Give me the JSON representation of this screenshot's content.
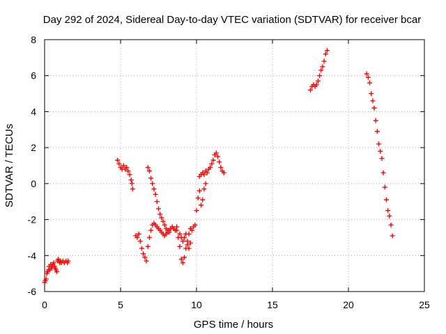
{
  "chart_data": {
    "type": "scatter",
    "title": "Day 292 of 2024, Sidereal Day-to-day VTEC variation (SDTVAR) for receiver bcar",
    "xlabel": "GPS time / hours",
    "ylabel": "SDTVAR / TECUs",
    "xlim": [
      0,
      25
    ],
    "ylim": [
      -6,
      8
    ],
    "xticks": [
      "0",
      "5",
      "10",
      "15",
      "20",
      "25"
    ],
    "yticks": [
      "-6",
      "-4",
      "-2",
      "0",
      "2",
      "4",
      "6",
      "8"
    ],
    "grid": true,
    "marker": "plus",
    "series": [
      {
        "name": "SDTVAR",
        "color": "#ff0000",
        "segments": [
          {
            "x": [
              0.0,
              0.05,
              0.1,
              0.15,
              0.2,
              0.25,
              0.3,
              0.35,
              0.4,
              0.45,
              0.5,
              0.55,
              0.6,
              0.65,
              0.7,
              0.75,
              0.8,
              0.85,
              0.9,
              0.95,
              1.0,
              1.05,
              1.1,
              1.2,
              1.3,
              1.4,
              1.5,
              1.55
            ],
            "y": [
              -5.5,
              -5.4,
              -5.3,
              -5.0,
              -4.9,
              -4.8,
              -4.6,
              -4.8,
              -4.5,
              -4.7,
              -4.6,
              -4.5,
              -4.4,
              -4.6,
              -4.7,
              -4.8,
              -4.9,
              -4.3,
              -4.2,
              -4.3,
              -4.4,
              -4.3,
              -4.4,
              -4.3,
              -4.4,
              -4.3,
              -4.4,
              -4.3
            ]
          },
          {
            "x": [
              4.8,
              4.9,
              5.0,
              5.1,
              5.2,
              5.3,
              5.4,
              5.5,
              5.6,
              5.7,
              5.75,
              5.8
            ],
            "y": [
              1.3,
              1.1,
              0.9,
              0.8,
              1.0,
              0.8,
              0.9,
              0.7,
              0.5,
              0.2,
              0.0,
              -0.3
            ]
          },
          {
            "x": [
              6.0,
              6.1,
              6.2,
              6.3,
              6.4,
              6.5,
              6.6,
              6.7,
              6.8,
              6.9,
              7.0,
              7.1,
              7.2,
              7.3,
              7.4,
              7.5,
              7.6,
              7.7,
              7.8,
              7.9,
              8.0,
              8.1,
              8.2,
              8.3,
              8.4,
              8.5,
              8.6,
              8.7
            ],
            "y": [
              -2.9,
              -3.0,
              -2.8,
              -3.2,
              -3.6,
              -3.9,
              -4.1,
              -4.3,
              -3.5,
              -3.0,
              -2.6,
              -2.3,
              -2.2,
              -2.3,
              -2.4,
              -2.5,
              -2.6,
              -2.7,
              -2.8,
              -2.9,
              -2.8,
              -2.7,
              -2.6,
              -2.5,
              -2.4,
              -2.5,
              -2.6,
              -2.4
            ]
          },
          {
            "x": [
              6.8,
              6.9,
              7.0,
              7.1,
              7.2,
              7.3,
              7.4,
              7.5,
              7.6,
              7.7,
              7.8,
              7.9,
              8.0,
              8.1,
              8.2
            ],
            "y": [
              0.9,
              0.7,
              0.3,
              0.0,
              -0.3,
              -0.6,
              -1.0,
              -1.4,
              -1.7,
              -1.9,
              -2.1,
              -2.3,
              -2.5,
              -2.6,
              -2.7
            ]
          },
          {
            "x": [
              8.7,
              8.8,
              8.9,
              9.0,
              9.1,
              9.2,
              9.3,
              9.4,
              9.5,
              9.6,
              9.7,
              9.8,
              9.9,
              10.0,
              10.1,
              10.2,
              10.3,
              10.4,
              10.5,
              10.6
            ],
            "y": [
              -2.6,
              -3.0,
              -3.5,
              -4.2,
              -4.4,
              -4.1,
              -3.6,
              -3.2,
              -2.8,
              -2.5,
              -2.6,
              -2.4,
              -2.3,
              -1.5,
              -0.8,
              -0.4,
              -1.2,
              -0.9,
              -0.3,
              0.0
            ]
          },
          {
            "x": [
              8.9,
              9.0,
              9.1,
              9.2,
              9.3,
              9.4,
              9.5,
              9.6
            ],
            "y": [
              -2.8,
              -3.0,
              -3.2,
              -3.0,
              -2.8,
              -3.4,
              -3.6,
              -3.3
            ]
          },
          {
            "x": [
              10.2,
              10.3,
              10.4,
              10.5,
              10.6,
              10.7,
              10.8,
              10.9,
              11.0,
              11.1,
              11.2,
              11.3,
              11.4,
              11.5,
              11.6,
              11.7,
              11.8
            ],
            "y": [
              0.4,
              0.5,
              0.6,
              0.5,
              0.7,
              0.6,
              0.8,
              0.9,
              1.1,
              1.3,
              1.6,
              1.7,
              1.5,
              1.2,
              0.9,
              0.7,
              0.6
            ]
          },
          {
            "x": [
              17.5,
              17.6,
              17.7,
              17.8,
              17.9,
              18.0,
              18.1,
              18.2,
              18.3,
              18.4,
              18.5,
              18.6
            ],
            "y": [
              5.2,
              5.4,
              5.5,
              5.4,
              5.5,
              5.7,
              6.0,
              6.3,
              6.5,
              6.8,
              7.2,
              7.4
            ]
          },
          {
            "x": [
              21.2,
              21.3,
              21.4,
              21.5,
              21.6,
              21.7,
              21.8,
              21.9,
              22.0,
              22.1,
              22.2,
              22.3,
              22.4,
              22.5,
              22.6,
              22.7,
              22.8,
              22.9
            ],
            "y": [
              6.1,
              5.9,
              5.6,
              5.0,
              4.6,
              4.2,
              3.5,
              2.9,
              2.2,
              1.8,
              1.4,
              0.6,
              -0.2,
              -0.9,
              -1.5,
              -1.8,
              -2.3,
              -2.9
            ]
          }
        ]
      }
    ]
  }
}
